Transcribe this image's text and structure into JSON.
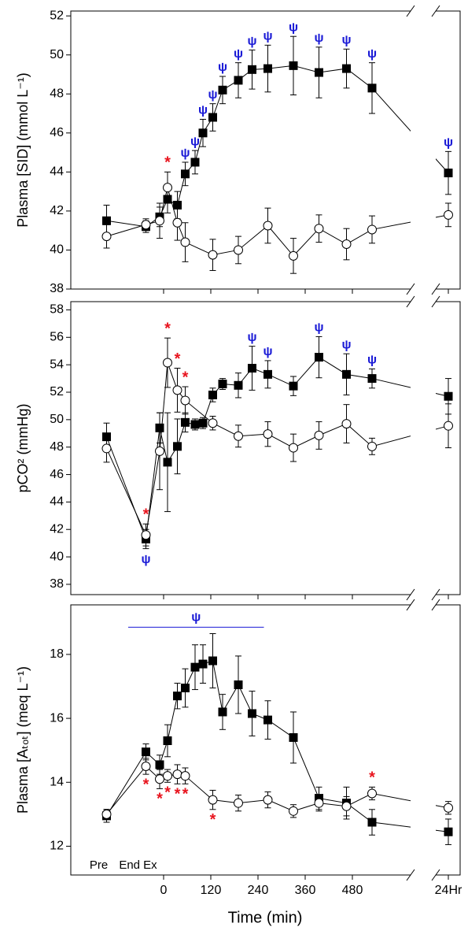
{
  "x_axis": {
    "label": "Time (min)",
    "xlim": [
      -236,
      1470
    ],
    "x_break": [
      640,
      1400
    ],
    "xticks": [
      0,
      120,
      240,
      360,
      480,
      {
        "value": 1440,
        "label": "24Hr"
      }
    ]
  },
  "chart_data": [
    {
      "type": "line",
      "y_label": "Plasma [SID] (mmol L⁻¹)",
      "ylim": [
        38,
        52.25
      ],
      "yticks": [
        38,
        40,
        42,
        44,
        46,
        48,
        50,
        52
      ],
      "series": [
        {
          "color": "#000000",
          "marker": "square",
          "fill": "#000000",
          "sig_color": "#1a1ad6",
          "x": [
            -145,
            -45,
            -10,
            10,
            35,
            55,
            80,
            100,
            125,
            150,
            190,
            225,
            265,
            330,
            395,
            465,
            530,
            1440
          ],
          "values": [
            41.5,
            41.2,
            41.7,
            42.6,
            42.3,
            43.9,
            44.5,
            46.0,
            46.8,
            48.2,
            48.7,
            49.25,
            49.3,
            49.45,
            49.1,
            49.3,
            48.3,
            43.95
          ],
          "errors": [
            0.8,
            0.3,
            0.5,
            0.7,
            0.7,
            0.6,
            0.6,
            0.7,
            0.7,
            0.7,
            0.9,
            1.0,
            1.2,
            1.5,
            1.3,
            1.0,
            1.3,
            1.1
          ],
          "sig": [
            null,
            null,
            null,
            null,
            null,
            "ψ",
            "ψ",
            "ψ",
            "ψ",
            "ψ",
            "ψ",
            "ψ",
            "ψ",
            "ψ",
            "ψ",
            "ψ",
            "ψ",
            "ψ"
          ]
        },
        {
          "color": "#000000",
          "marker": "circle",
          "fill": "#ffffff",
          "sig_color": "#e8141e",
          "x": [
            -145,
            -45,
            -10,
            10,
            35,
            55,
            125,
            190,
            265,
            330,
            395,
            465,
            530,
            1440
          ],
          "values": [
            40.7,
            41.3,
            41.5,
            43.2,
            41.4,
            40.4,
            39.75,
            40.0,
            41.25,
            39.7,
            41.1,
            40.3,
            41.05,
            41.8
          ],
          "errors": [
            0.6,
            0.3,
            0.9,
            0.8,
            0.9,
            1.0,
            0.8,
            0.7,
            0.9,
            0.9,
            0.7,
            0.8,
            0.7,
            0.6
          ],
          "sig": [
            null,
            null,
            null,
            "*",
            null,
            null,
            null,
            null,
            null,
            null,
            null,
            null,
            null,
            null
          ]
        }
      ]
    },
    {
      "type": "line",
      "y_label": "pCO² (mmHg)",
      "ylim": [
        37.25,
        58.6
      ],
      "yticks": [
        38,
        40,
        42,
        44,
        46,
        48,
        50,
        52,
        54,
        56,
        58
      ],
      "series": [
        {
          "color": "#000000",
          "marker": "square",
          "fill": "#000000",
          "sig_color": "#1a1ad6",
          "x": [
            -145,
            -45,
            -10,
            10,
            35,
            55,
            80,
            100,
            125,
            150,
            190,
            225,
            265,
            330,
            395,
            465,
            530,
            1440
          ],
          "values": [
            48.75,
            41.3,
            49.4,
            46.9,
            48.05,
            49.8,
            49.65,
            49.75,
            51.8,
            52.6,
            52.5,
            53.75,
            53.3,
            52.45,
            54.55,
            53.3,
            53.0,
            51.7
          ],
          "errors": [
            1.0,
            0.7,
            1.1,
            3.6,
            2.0,
            0.7,
            0.4,
            0.4,
            0.5,
            0.4,
            0.9,
            1.6,
            1.0,
            0.7,
            1.5,
            1.5,
            0.7,
            1.3
          ],
          "sig": [
            null,
            "ψ",
            null,
            null,
            null,
            null,
            null,
            null,
            null,
            null,
            null,
            "ψ",
            "ψ",
            null,
            "ψ",
            "ψ",
            "ψ",
            null
          ]
        },
        {
          "color": "#000000",
          "marker": "circle",
          "fill": "#ffffff",
          "sig_color": "#e8141e",
          "x": [
            -145,
            -45,
            -10,
            10,
            35,
            55,
            125,
            190,
            265,
            330,
            395,
            465,
            530,
            1440
          ],
          "values": [
            47.9,
            41.6,
            47.7,
            54.15,
            52.15,
            51.4,
            49.75,
            48.8,
            48.95,
            47.95,
            48.85,
            49.7,
            48.05,
            49.55
          ],
          "errors": [
            1.0,
            0.8,
            2.8,
            1.8,
            1.6,
            1.0,
            0.5,
            0.8,
            0.9,
            1.0,
            1.0,
            1.4,
            0.6,
            1.6
          ],
          "sig": [
            null,
            "*",
            null,
            "*",
            "*",
            "*",
            null,
            null,
            null,
            null,
            null,
            null,
            null,
            null
          ]
        }
      ]
    },
    {
      "type": "line",
      "y_label": "Plasma [Aₜₒₜ] (meq L⁻¹)",
      "ylim": [
        11.1,
        19.55
      ],
      "yticks": [
        12,
        14,
        16,
        18
      ],
      "phase_labels": [
        "Pre",
        "End Ex"
      ],
      "span": {
        "text": "ψ",
        "x": [
          -90,
          255
        ],
        "y": 18.85,
        "color": "#1a1ad6"
      },
      "series": [
        {
          "color": "#000000",
          "marker": "square",
          "fill": "#000000",
          "sig_color": "#1a1ad6",
          "x": [
            -145,
            -45,
            -10,
            10,
            35,
            55,
            80,
            100,
            125,
            150,
            190,
            225,
            265,
            330,
            395,
            465,
            530,
            1440
          ],
          "values": [
            12.95,
            14.95,
            14.55,
            15.3,
            16.7,
            16.95,
            17.6,
            17.7,
            17.8,
            16.2,
            17.05,
            16.15,
            15.95,
            15.4,
            13.5,
            13.35,
            12.75,
            12.45
          ],
          "errors": [
            0.2,
            0.25,
            0.3,
            0.5,
            0.4,
            0.6,
            0.7,
            0.6,
            0.85,
            0.55,
            0.9,
            0.7,
            0.6,
            0.8,
            0.35,
            0.5,
            0.4,
            0.4
          ]
        },
        {
          "color": "#000000",
          "marker": "circle",
          "fill": "#ffffff",
          "sig_color": "#e8141e",
          "x": [
            -145,
            -45,
            -10,
            10,
            35,
            55,
            125,
            190,
            265,
            330,
            395,
            465,
            530,
            1440
          ],
          "values": [
            13.0,
            14.5,
            14.1,
            14.2,
            14.25,
            14.2,
            13.45,
            13.35,
            13.45,
            13.1,
            13.35,
            13.25,
            13.65,
            13.2
          ],
          "errors": [
            0.15,
            0.25,
            0.3,
            0.2,
            0.3,
            0.25,
            0.3,
            0.25,
            0.25,
            0.2,
            0.25,
            0.3,
            0.2,
            0.2
          ],
          "sig": [
            null,
            "*",
            "*",
            "*",
            "*",
            "*",
            "*",
            null,
            null,
            null,
            null,
            null,
            "*",
            null
          ]
        }
      ]
    }
  ]
}
